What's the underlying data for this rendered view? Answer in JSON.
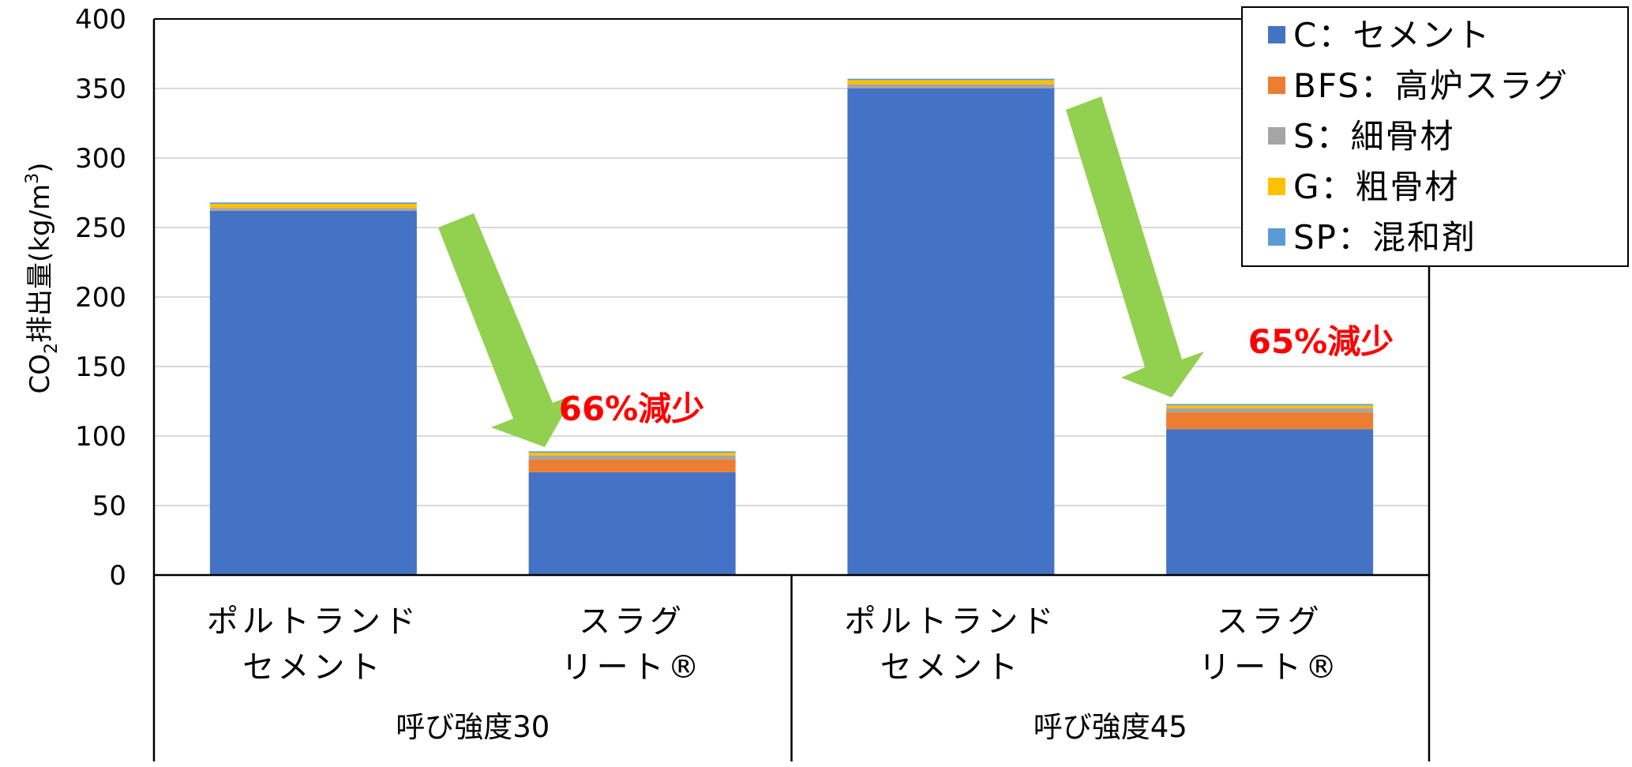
{
  "chart_data": {
    "type": "bar",
    "stacked": true,
    "categories": [
      [
        "ポルトランド",
        "セメント"
      ],
      [
        "スラグ",
        "リート®"
      ],
      [
        "ポルトランド",
        "セメント"
      ],
      [
        "スラグ",
        "リート®"
      ]
    ],
    "groups": [
      {
        "label": "呼び強度30",
        "span": [
          0,
          1
        ]
      },
      {
        "label": "呼び強度45",
        "span": [
          2,
          3
        ]
      }
    ],
    "series": [
      {
        "name": "C：セメント",
        "color": "#4472c4",
        "values": [
          262,
          74,
          350,
          105
        ]
      },
      {
        "name": "BFS：高炉スラグ",
        "color": "#ed7d31",
        "values": [
          0,
          9,
          0,
          12
        ]
      },
      {
        "name": "S：細骨材",
        "color": "#a5a5a5",
        "values": [
          2,
          3,
          3,
          3
        ]
      },
      {
        "name": "G：粗骨材",
        "color": "#ffc000",
        "values": [
          3,
          2,
          3,
          2
        ]
      },
      {
        "name": "SP：混和剤",
        "color": "#5b9bd5",
        "values": [
          1,
          1,
          1,
          1
        ]
      }
    ],
    "ylabel": "CO2排出量(kg/m3)",
    "ylabel_parts": {
      "main": "CO",
      "sub": "2",
      "mid": "排出量(kg/m",
      "sup": "3",
      "end": ")"
    },
    "ylim": [
      0,
      400
    ],
    "yticks": [
      0,
      50,
      100,
      150,
      200,
      250,
      300,
      350,
      400
    ],
    "grid": true,
    "legend_position": "top-right",
    "annotations": [
      {
        "text": "66%減少",
        "color": "#ff0000"
      },
      {
        "text": "65%減少",
        "color": "#ff0000"
      }
    ],
    "arrow_color": "#92d050"
  }
}
